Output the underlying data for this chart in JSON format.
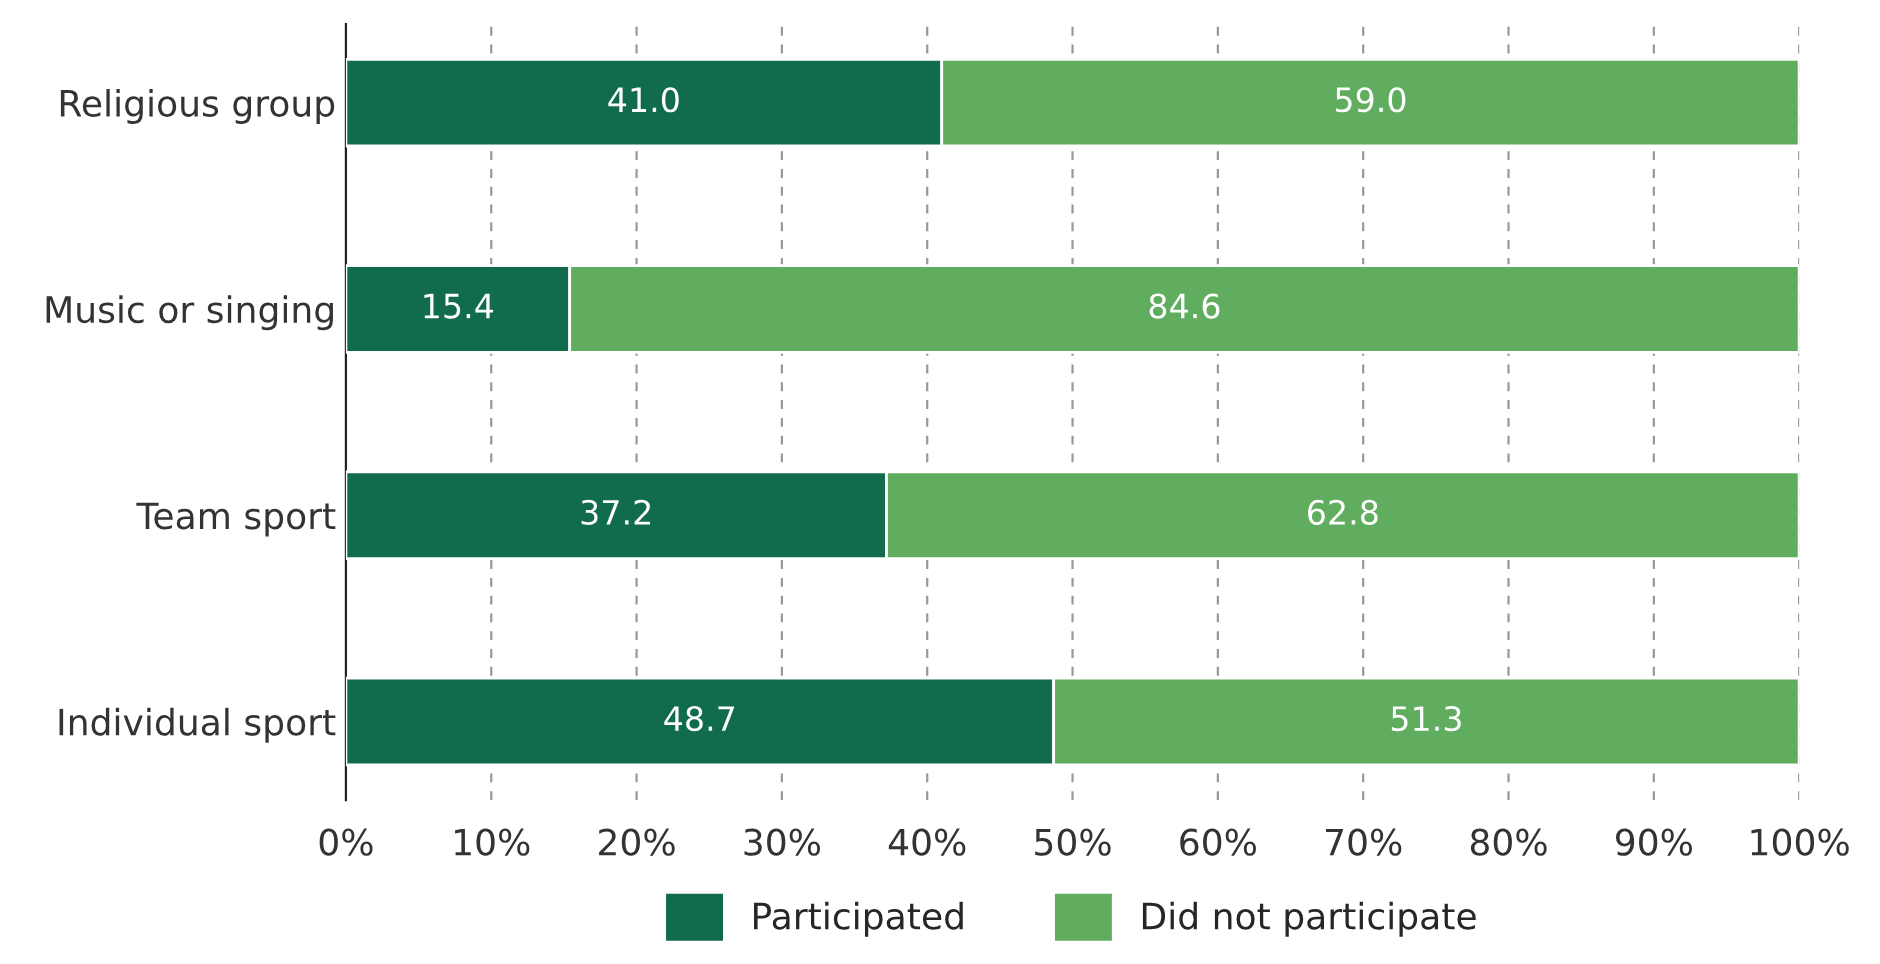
{
  "chart_data": {
    "type": "bar",
    "orientation": "horizontal",
    "stacked": true,
    "categories": [
      "Religious group",
      "Music or singing",
      "Team sport",
      "Individual sport"
    ],
    "series": [
      {
        "name": "Participated",
        "color": "#116b4d",
        "values": [
          41.0,
          15.4,
          37.2,
          48.7
        ],
        "value_labels": [
          "41.0",
          "15.4",
          "37.2",
          "48.7"
        ]
      },
      {
        "name": "Did not participate",
        "color": "#60ad5f",
        "values": [
          59.0,
          84.6,
          62.8,
          51.3
        ],
        "value_labels": [
          "59.0",
          "84.6",
          "62.8",
          "51.3"
        ]
      }
    ],
    "xlim": [
      0,
      100
    ],
    "xticks": [
      {
        "value": 0,
        "label": "0%"
      },
      {
        "value": 10,
        "label": "10%"
      },
      {
        "value": 20,
        "label": "20%"
      },
      {
        "value": 30,
        "label": "30%"
      },
      {
        "value": 40,
        "label": "40%"
      },
      {
        "value": 50,
        "label": "50%"
      },
      {
        "value": 60,
        "label": "60%"
      },
      {
        "value": 70,
        "label": "70%"
      },
      {
        "value": 80,
        "label": "80%"
      },
      {
        "value": 90,
        "label": "90%"
      },
      {
        "value": 100,
        "label": "100%"
      }
    ],
    "grid": "x",
    "legend": "bottom"
  }
}
